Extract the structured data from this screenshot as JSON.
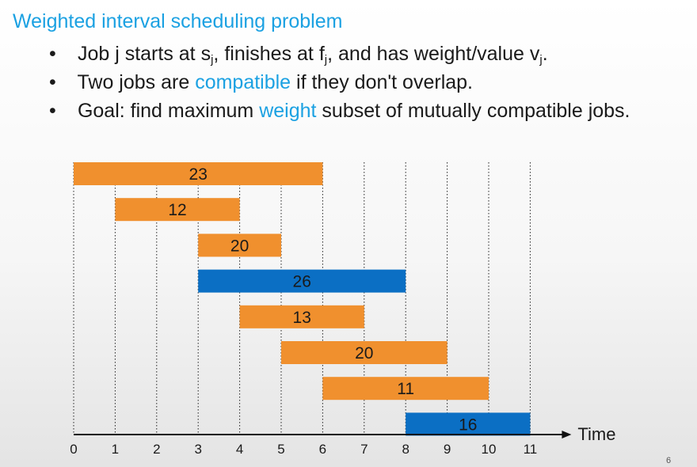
{
  "slide": {
    "title": "Weighted interval scheduling problem",
    "page_number": "6",
    "bullets": [
      {
        "marker": "•",
        "parts": [
          {
            "text": "Job j starts at s"
          },
          {
            "text": "j",
            "sub": true
          },
          {
            "text": ", finishes at f"
          },
          {
            "text": "j",
            "sub": true
          },
          {
            "text": ", and has weight/value v"
          },
          {
            "text": "j",
            "sub": true
          },
          {
            "text": "."
          }
        ]
      },
      {
        "marker": "•",
        "parts": [
          {
            "text": "Two jobs are "
          },
          {
            "text": "compatible",
            "highlight": true
          },
          {
            "text": " if they don't overlap."
          }
        ]
      },
      {
        "marker": "•",
        "parts": [
          {
            "text": "Goal: find maximum "
          },
          {
            "text": "weight",
            "highlight": true
          },
          {
            "text": " subset of mutually compatible jobs."
          }
        ]
      }
    ]
  },
  "colors": {
    "accent": "#1ba1e2",
    "job_orange": "#f0902e",
    "job_blue": "#0b6fc4"
  },
  "chart_data": {
    "type": "gantt",
    "xlabel": "Time",
    "xlim": [
      0,
      11
    ],
    "ticks": [
      0,
      1,
      2,
      3,
      4,
      5,
      6,
      7,
      8,
      9,
      10,
      11
    ],
    "jobs": [
      {
        "start": 0,
        "finish": 6,
        "weight": 23,
        "highlighted": false
      },
      {
        "start": 1,
        "finish": 4,
        "weight": 12,
        "highlighted": false
      },
      {
        "start": 3,
        "finish": 5,
        "weight": 20,
        "highlighted": false
      },
      {
        "start": 3,
        "finish": 8,
        "weight": 26,
        "highlighted": true
      },
      {
        "start": 4,
        "finish": 7,
        "weight": 13,
        "highlighted": false
      },
      {
        "start": 5,
        "finish": 9,
        "weight": 20,
        "highlighted": false
      },
      {
        "start": 6,
        "finish": 10,
        "weight": 11,
        "highlighted": false
      },
      {
        "start": 8,
        "finish": 11,
        "weight": 16,
        "highlighted": true
      }
    ]
  }
}
